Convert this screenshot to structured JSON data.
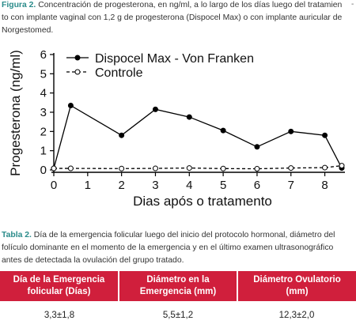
{
  "figure": {
    "label": "Figura 2.",
    "caption": " Concentración de progesterona, en ng/ml, a lo largo de los días luego del tratamien to con implante vaginal con 1,2 g de progesterona (Dispocel Max) o con implante auricular de Norgestomed.",
    "edge_mark": "-"
  },
  "chart_data": {
    "type": "line",
    "xlabel": "Dias após o tratamento",
    "ylabel": "Progesterona (ng/ml)",
    "xlim": [
      0,
      8.5
    ],
    "ylim": [
      0,
      6
    ],
    "xticks": [
      "0",
      "1",
      "2",
      "3",
      "4",
      "5",
      "6",
      "7",
      "8"
    ],
    "yticks": [
      "0",
      "1",
      "2",
      "3",
      "4",
      "5",
      "6"
    ],
    "grid": false,
    "legend_position": "top-left",
    "series": [
      {
        "name": "Dispocel Max - Von Franken",
        "style": "solid",
        "marker": "filled-circle",
        "color": "#000000",
        "points": [
          {
            "x": 0,
            "y": 0.08
          },
          {
            "x": 0.5,
            "y": 3.35
          },
          {
            "x": 2,
            "y": 1.8
          },
          {
            "x": 3,
            "y": 3.15
          },
          {
            "x": 4,
            "y": 2.75
          },
          {
            "x": 5,
            "y": 2.05
          },
          {
            "x": 6,
            "y": 1.2
          },
          {
            "x": 7,
            "y": 2.0
          },
          {
            "x": 8,
            "y": 1.8
          },
          {
            "x": 8.5,
            "y": 0.1
          }
        ]
      },
      {
        "name": "Controle",
        "style": "dashed",
        "marker": "open-circle",
        "color": "#000000",
        "points": [
          {
            "x": 0,
            "y": 0.08
          },
          {
            "x": 0.5,
            "y": 0.08
          },
          {
            "x": 2,
            "y": 0.07
          },
          {
            "x": 3,
            "y": 0.08
          },
          {
            "x": 4,
            "y": 0.1
          },
          {
            "x": 5,
            "y": 0.07
          },
          {
            "x": 6,
            "y": 0.06
          },
          {
            "x": 7,
            "y": 0.1
          },
          {
            "x": 8,
            "y": 0.12
          },
          {
            "x": 8.5,
            "y": 0.22
          }
        ]
      }
    ]
  },
  "table": {
    "label": "Tabla 2.",
    "caption": " Día de la emergencia folicular luego del inicio del protocolo hormonal, diámetro del folículo dominante en el momento de la emergencia y en el último examen ultrasonográfico antes de detectada la ovulación del grupo tratado.",
    "headers": [
      "Día de la Emergencia folicular (Días)",
      "Diámetro en la Emergencia (mm)",
      "Diámetro Ovulatorio (mm)"
    ],
    "row": [
      "3,3±1,8",
      "5,5±1,2",
      "12,3±2,0"
    ],
    "header_color": "#d01f3c"
  }
}
